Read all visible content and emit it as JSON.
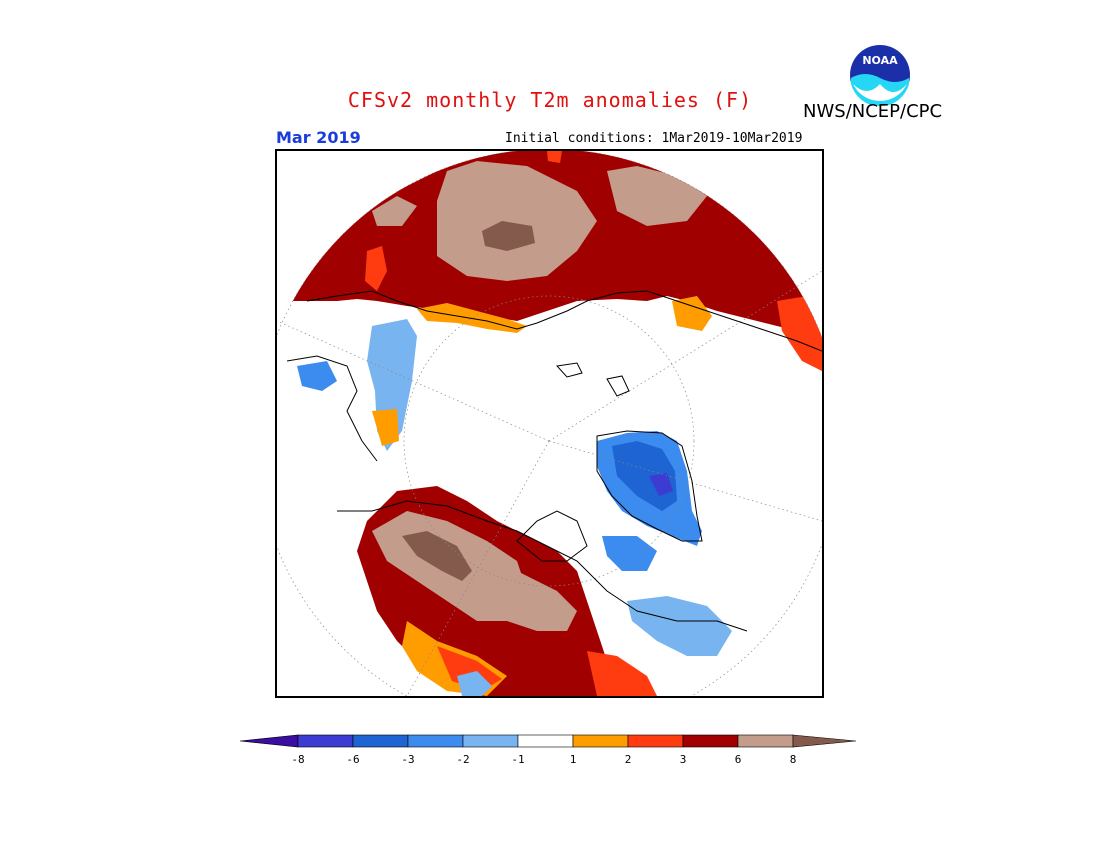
{
  "header": {
    "title": "CFSv2 monthly T2m anomalies (F)",
    "agency": "NWS/NCEP/CPC",
    "month": "Mar 2019",
    "initial_conditions": "Initial conditions: 1Mar2019-10Mar2019",
    "logo_text": "NOAA"
  },
  "colors": {
    "dark_brown": "#835a4c",
    "tan": "#c49c8c",
    "dark_red": "#a00000",
    "red_orange": "#ff3c10",
    "orange": "#ff9c00",
    "white": "#ffffff",
    "light_blue": "#78b4f0",
    "mid_blue": "#3c8cf0",
    "blue": "#1e64d2",
    "dark_blue": "#3c3cd2",
    "deep_purple": "#3a0ea0",
    "title_red": "#e01010",
    "month_blue": "#1a3cd8"
  },
  "colorbar": {
    "labels": [
      "-8",
      "-6",
      "-3",
      "-2",
      "-1",
      "1",
      "2",
      "3",
      "6",
      "8"
    ]
  },
  "map": {
    "projection": "north polar stereographic"
  }
}
